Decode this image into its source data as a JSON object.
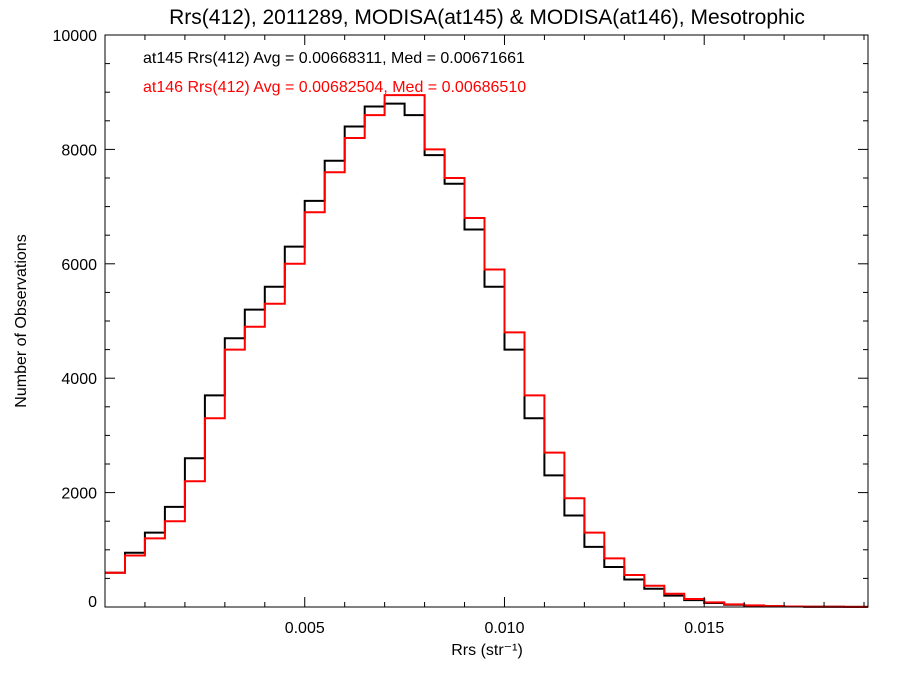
{
  "chart_data": {
    "type": "line",
    "title": "Rrs(412), 2011289, MODISA(at145) & MODISA(at146), Mesotrophic",
    "xlabel": "Rrs (str⁻¹)",
    "ylabel": "Number of Observations",
    "xlim": [
      0.0,
      0.0191
    ],
    "ylim": [
      0,
      10000
    ],
    "xticks": [
      0.005,
      0.01,
      0.015
    ],
    "xtick_labels": [
      "0.005",
      "0.010",
      "0.015"
    ],
    "yticks": [
      0,
      2000,
      4000,
      6000,
      8000,
      10000
    ],
    "ytick_labels": [
      "0",
      "2000",
      "4000",
      "6000",
      "8000",
      "10000"
    ],
    "grid": false,
    "legend_position": "top-left",
    "style": "step",
    "annotations": [
      {
        "text": "at145 Rrs(412) Avg = 0.00668311, Med = 0.00671661",
        "color": "#000000"
      },
      {
        "text": "at146 Rrs(412) Avg = 0.00682504, Med = 0.00686510",
        "color": "#ff0000"
      }
    ],
    "series": [
      {
        "color": "#000000",
        "x": [
          0.0,
          0.0005,
          0.001,
          0.0015,
          0.002,
          0.0025,
          0.003,
          0.0035,
          0.004,
          0.0045,
          0.005,
          0.0055,
          0.006,
          0.0065,
          0.007,
          0.0075,
          0.008,
          0.0085,
          0.009,
          0.0095,
          0.01,
          0.0105,
          0.011,
          0.0115,
          0.012,
          0.0125,
          0.013,
          0.0135,
          0.014,
          0.0145,
          0.015,
          0.0155,
          0.016,
          0.0165,
          0.017,
          0.0175,
          0.018,
          0.0185,
          0.0191
        ],
        "values": [
          600,
          950,
          1300,
          1750,
          2600,
          3700,
          4700,
          5200,
          5600,
          6300,
          7100,
          7800,
          8400,
          8750,
          8800,
          8600,
          7900,
          7400,
          6600,
          5600,
          4500,
          3300,
          2300,
          1600,
          1050,
          700,
          480,
          320,
          200,
          120,
          70,
          40,
          25,
          15,
          8,
          5,
          3,
          2,
          1
        ]
      },
      {
        "color": "#ff0000",
        "x": [
          0.0,
          0.0005,
          0.001,
          0.0015,
          0.002,
          0.0025,
          0.003,
          0.0035,
          0.004,
          0.0045,
          0.005,
          0.0055,
          0.006,
          0.0065,
          0.007,
          0.0075,
          0.008,
          0.0085,
          0.009,
          0.0095,
          0.01,
          0.0105,
          0.011,
          0.0115,
          0.012,
          0.0125,
          0.013,
          0.0135,
          0.014,
          0.0145,
          0.015,
          0.0155,
          0.016,
          0.0165,
          0.017,
          0.0175,
          0.018,
          0.0185,
          0.0191
        ],
        "values": [
          600,
          900,
          1200,
          1500,
          2200,
          3300,
          4500,
          4900,
          5300,
          6000,
          6900,
          7600,
          8200,
          8600,
          8950,
          8950,
          8000,
          7500,
          6800,
          5900,
          4800,
          3700,
          2700,
          1900,
          1300,
          850,
          560,
          370,
          230,
          140,
          80,
          45,
          28,
          16,
          9,
          5,
          3,
          2,
          1
        ]
      }
    ]
  }
}
